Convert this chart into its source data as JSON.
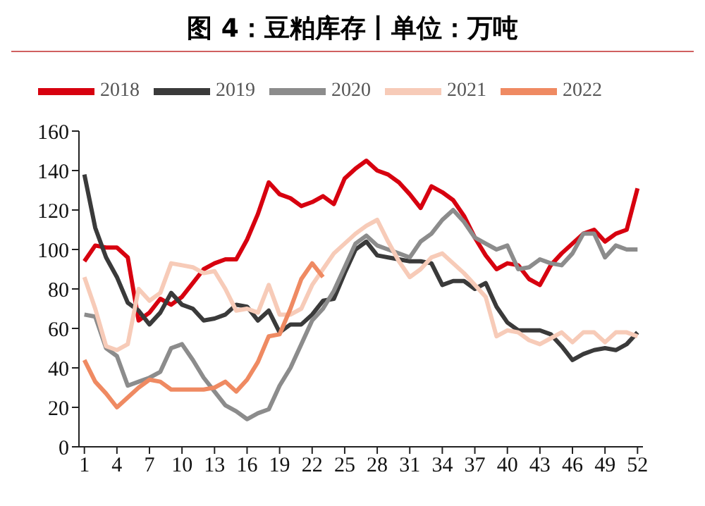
{
  "chart_data": {
    "type": "line",
    "title": "图 4：豆粕库存丨单位：万吨",
    "x": [
      1,
      2,
      3,
      4,
      5,
      6,
      7,
      8,
      9,
      10,
      11,
      12,
      13,
      14,
      15,
      16,
      17,
      18,
      19,
      20,
      21,
      22,
      23,
      24,
      25,
      26,
      27,
      28,
      29,
      30,
      31,
      32,
      33,
      34,
      35,
      36,
      37,
      38,
      39,
      40,
      41,
      42,
      43,
      44,
      45,
      46,
      47,
      48,
      49,
      50,
      51,
      52
    ],
    "series": [
      {
        "name": "2018",
        "color": "#d7000f",
        "values": [
          94,
          102,
          101,
          101,
          96,
          64,
          68,
          75,
          72,
          76,
          83,
          90,
          93,
          95,
          95,
          105,
          118,
          134,
          128,
          126,
          122,
          124,
          127,
          123,
          136,
          141,
          145,
          140,
          138,
          134,
          128,
          121,
          132,
          129,
          125,
          117,
          106,
          97,
          90,
          93,
          92,
          85,
          82,
          92,
          98,
          103,
          108,
          110,
          104,
          108,
          110,
          131
        ]
      },
      {
        "name": "2019",
        "color": "#3a3a3a",
        "values": [
          138,
          111,
          96,
          86,
          73,
          69,
          62,
          68,
          78,
          72,
          70,
          64,
          65,
          67,
          72,
          71,
          64,
          69,
          58,
          62,
          62,
          67,
          74,
          75,
          88,
          100,
          104,
          97,
          96,
          95,
          94,
          94,
          93,
          82,
          84,
          84,
          80,
          83,
          71,
          63,
          59,
          59,
          59,
          57,
          51,
          44,
          47,
          49,
          50,
          49,
          52,
          58
        ]
      },
      {
        "name": "2020",
        "color": "#8c8c8c",
        "values": [
          67,
          66,
          50,
          46,
          31,
          33,
          35,
          38,
          50,
          52,
          44,
          35,
          28,
          21,
          18,
          14,
          17,
          19,
          31,
          40,
          52,
          64,
          70,
          79,
          91,
          103,
          107,
          102,
          100,
          98,
          96,
          104,
          108,
          115,
          120,
          114,
          106,
          103,
          100,
          102,
          90,
          91,
          95,
          93,
          92,
          98,
          108,
          108,
          96,
          102,
          100,
          100
        ]
      },
      {
        "name": "2021",
        "color": "#f7cbb8",
        "values": [
          86,
          70,
          51,
          49,
          52,
          80,
          74,
          78,
          93,
          92,
          91,
          88,
          89,
          80,
          69,
          70,
          68,
          82,
          67,
          67,
          70,
          82,
          90,
          98,
          103,
          108,
          112,
          115,
          104,
          94,
          86,
          90,
          96,
          98,
          93,
          88,
          82,
          76,
          56,
          59,
          58,
          54,
          52,
          55,
          58,
          53,
          58,
          58,
          53,
          58,
          58,
          56
        ]
      },
      {
        "name": "2022",
        "color": "#ef8a62",
        "values": [
          44,
          33,
          27,
          20,
          25,
          30,
          34,
          33,
          29,
          29,
          29,
          29,
          30,
          33,
          28,
          34,
          43,
          56,
          57,
          70,
          85,
          93,
          86,
          null,
          null,
          null,
          null,
          null,
          null,
          null,
          null,
          null,
          null,
          null,
          null,
          null,
          null,
          null,
          null,
          null,
          null,
          null,
          null,
          null,
          null,
          null,
          null,
          null,
          null,
          null,
          null,
          null
        ]
      }
    ],
    "xlim": [
      0.5,
      52.5
    ],
    "xticks": [
      1,
      4,
      7,
      10,
      13,
      16,
      19,
      22,
      25,
      28,
      31,
      34,
      37,
      40,
      43,
      46,
      49,
      52
    ],
    "ylim": [
      0,
      160
    ],
    "yticks": [
      0,
      20,
      40,
      60,
      80,
      100,
      120,
      140,
      160
    ],
    "grid": false,
    "legend": "top",
    "marker": "none",
    "line_style": "solid"
  }
}
